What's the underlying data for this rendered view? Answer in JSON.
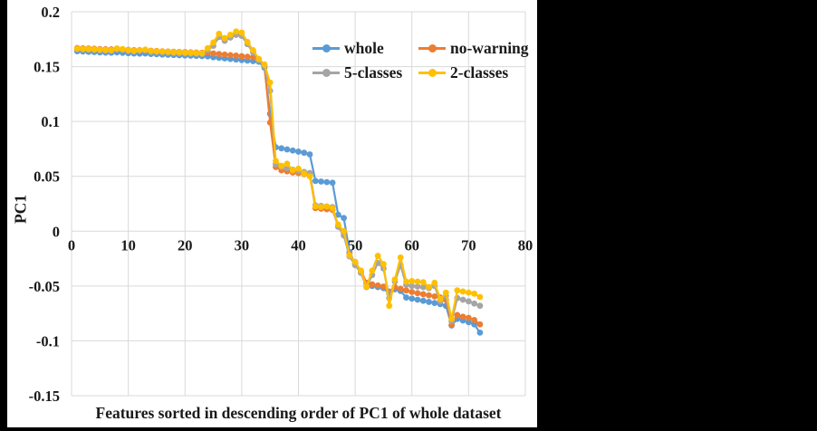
{
  "figure": {
    "background": "#000000",
    "panel_background": "#ffffff",
    "text_color": "#1a1a1a"
  },
  "chart_data": {
    "type": "line",
    "title": "",
    "xlabel": "Features sorted in descending order of PC1 of whole dataset",
    "ylabel": "PC1",
    "xlim": [
      0,
      80
    ],
    "ylim": [
      -0.15,
      0.2
    ],
    "grid": true,
    "gridline_color": "#d9d9d9",
    "legend_position": "top-right-inside",
    "marker": "circle",
    "x_ticks": [
      0,
      10,
      20,
      30,
      40,
      50,
      60,
      70,
      80
    ],
    "y_ticks": [
      "0.2",
      "0.15",
      "0.1",
      "0.05",
      "0",
      "-0.05",
      "-0.1",
      "-0.15"
    ],
    "y_tick_values": [
      0.2,
      0.15,
      0.1,
      0.05,
      0,
      -0.05,
      -0.1,
      -0.15
    ],
    "x": [
      1,
      2,
      3,
      4,
      5,
      6,
      7,
      8,
      9,
      10,
      11,
      12,
      13,
      14,
      15,
      16,
      17,
      18,
      19,
      20,
      21,
      22,
      23,
      24,
      25,
      26,
      27,
      28,
      29,
      30,
      31,
      32,
      33,
      34,
      35,
      36,
      37,
      38,
      39,
      40,
      41,
      42,
      43,
      44,
      45,
      46,
      47,
      48,
      49,
      50,
      51,
      52,
      53,
      54,
      55,
      56,
      57,
      58,
      59,
      60,
      61,
      62,
      63,
      64,
      65,
      66,
      67,
      68,
      69,
      70,
      71,
      72
    ],
    "series": [
      {
        "name": "whole",
        "color": "#5B9BD5",
        "values": [
          0.164,
          0.1638,
          0.1635,
          0.1633,
          0.163,
          0.1628,
          0.1627,
          0.163,
          0.1626,
          0.1623,
          0.162,
          0.1618,
          0.162,
          0.1615,
          0.1613,
          0.161,
          0.1608,
          0.1606,
          0.1604,
          0.1602,
          0.16,
          0.1598,
          0.1596,
          0.1594,
          0.1585,
          0.158,
          0.1575,
          0.157,
          0.1565,
          0.156,
          0.1555,
          0.155,
          0.1545,
          0.149,
          0.107,
          0.0765,
          0.0755,
          0.0745,
          0.0735,
          0.0725,
          0.0715,
          0.07,
          0.0458,
          0.0452,
          0.0447,
          0.0442,
          0.015,
          0.012,
          -0.019,
          -0.03,
          -0.037,
          -0.048,
          -0.05,
          -0.051,
          -0.052,
          -0.057,
          -0.053,
          -0.0545,
          -0.0605,
          -0.0615,
          -0.0625,
          -0.0635,
          -0.0645,
          -0.0655,
          -0.0665,
          -0.068,
          -0.086,
          -0.08,
          -0.0815,
          -0.083,
          -0.085,
          -0.0925
        ]
      },
      {
        "name": "no-warning",
        "color": "#ED7D31",
        "values": [
          0.167,
          0.1668,
          0.1665,
          0.1663,
          0.166,
          0.1658,
          0.1657,
          0.166,
          0.1656,
          0.1653,
          0.165,
          0.1648,
          0.165,
          0.1645,
          0.1643,
          0.164,
          0.1638,
          0.1636,
          0.1634,
          0.1632,
          0.163,
          0.1628,
          0.1626,
          0.163,
          0.162,
          0.1615,
          0.161,
          0.1605,
          0.16,
          0.1595,
          0.159,
          0.1585,
          0.157,
          0.151,
          0.099,
          0.0585,
          0.0555,
          0.0545,
          0.0535,
          0.053,
          0.052,
          0.051,
          0.021,
          0.0205,
          0.02,
          0.0195,
          0.005,
          -0.0015,
          -0.021,
          -0.029,
          -0.036,
          -0.047,
          -0.0485,
          -0.0495,
          -0.0505,
          -0.055,
          -0.051,
          -0.0525,
          -0.054,
          -0.0555,
          -0.0565,
          -0.0575,
          -0.0585,
          -0.0595,
          -0.0605,
          -0.0625,
          -0.0855,
          -0.0765,
          -0.078,
          -0.079,
          -0.081,
          -0.085
        ]
      },
      {
        "name": "5-classes",
        "color": "#A5A5A5",
        "values": [
          0.1657,
          0.1654,
          0.1652,
          0.165,
          0.1647,
          0.1644,
          0.1642,
          0.1657,
          0.1652,
          0.1642,
          0.1637,
          0.1644,
          0.1647,
          0.1634,
          0.1632,
          0.163,
          0.1627,
          0.1624,
          0.1622,
          0.162,
          0.1618,
          0.1616,
          0.1614,
          0.165,
          0.169,
          0.177,
          0.1735,
          0.1765,
          0.179,
          0.178,
          0.1705,
          0.163,
          0.156,
          0.1505,
          0.128,
          0.061,
          0.0585,
          0.0575,
          0.056,
          0.055,
          0.054,
          0.053,
          0.0235,
          0.023,
          0.0225,
          0.022,
          0.004,
          -0.004,
          -0.023,
          -0.031,
          -0.038,
          -0.051,
          -0.04,
          -0.029,
          -0.034,
          -0.061,
          -0.046,
          -0.031,
          -0.049,
          -0.05,
          -0.0505,
          -0.051,
          -0.052,
          -0.05,
          -0.064,
          -0.059,
          -0.082,
          -0.061,
          -0.0625,
          -0.064,
          -0.066,
          -0.068
        ]
      },
      {
        "name": "2-classes",
        "color": "#FFC000",
        "values": [
          0.1665,
          0.1662,
          0.166,
          0.1658,
          0.1655,
          0.1652,
          0.165,
          0.1665,
          0.166,
          0.165,
          0.1645,
          0.1652,
          0.1655,
          0.1642,
          0.164,
          0.1638,
          0.1635,
          0.1632,
          0.163,
          0.1628,
          0.1626,
          0.1624,
          0.1622,
          0.1668,
          0.172,
          0.18,
          0.176,
          0.179,
          0.182,
          0.181,
          0.1725,
          0.165,
          0.157,
          0.152,
          0.1355,
          0.064,
          0.0595,
          0.0615,
          0.0555,
          0.057,
          0.0525,
          0.05,
          0.0225,
          0.022,
          0.0225,
          0.021,
          0.006,
          0.0,
          -0.022,
          -0.028,
          -0.036,
          -0.0505,
          -0.036,
          -0.0225,
          -0.03,
          -0.068,
          -0.044,
          -0.024,
          -0.046,
          -0.0455,
          -0.046,
          -0.0465,
          -0.051,
          -0.047,
          -0.062,
          -0.056,
          -0.08,
          -0.054,
          -0.055,
          -0.056,
          -0.057,
          -0.06
        ]
      }
    ]
  }
}
